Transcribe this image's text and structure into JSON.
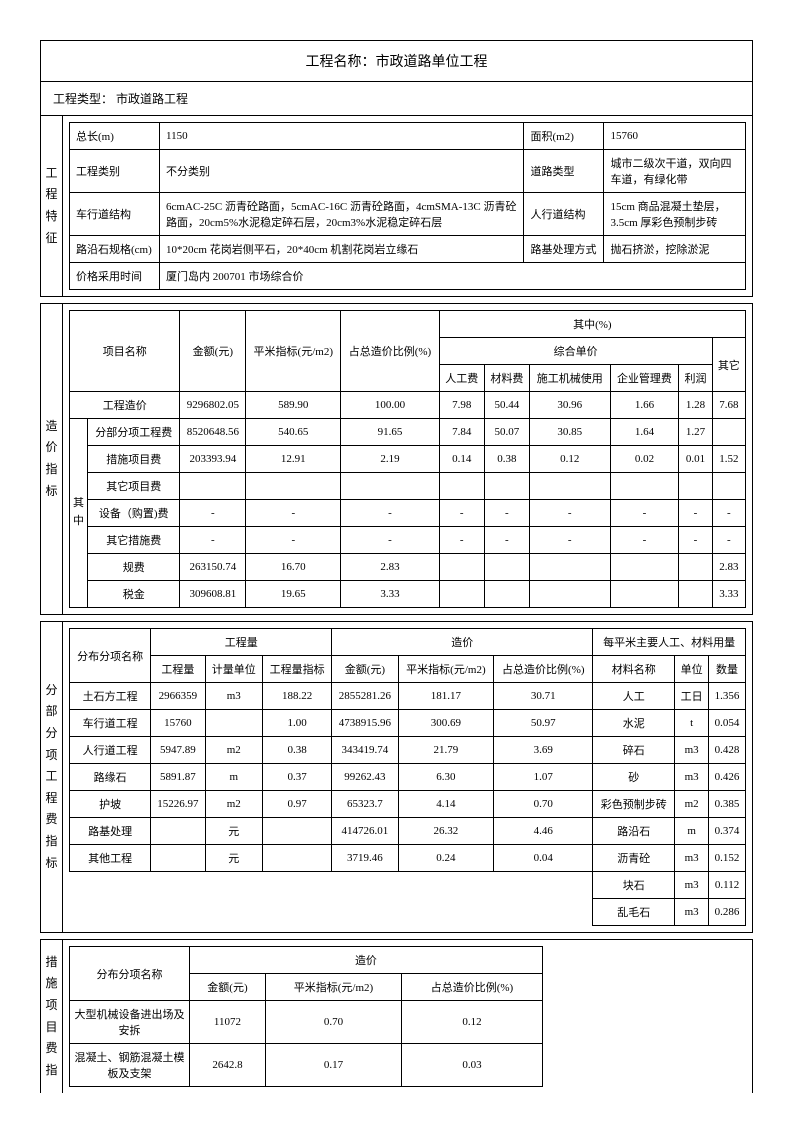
{
  "title": "工程名称：市政道路单位工程",
  "project_type_label": "工程类型： 市政道路工程",
  "section1": {
    "label": "工程特征",
    "rows": [
      [
        "总长(m)",
        "1150",
        "面积(m2)",
        "15760"
      ],
      [
        "工程类别",
        "不分类别",
        "道路类型",
        "城市二级次干道，双向四车道，有绿化带"
      ],
      [
        "车行道结构",
        "6cmAC-25C 沥青砼路面，5cmAC-16C 沥青砼路面，4cmSMA-13C 沥青砼路面，20cm5%水泥稳定碎石层，20cm3%水泥稳定碎石层",
        "人行道结构",
        "15cm 商品混凝土垫层，3.5cm 厚彩色预制步砖"
      ],
      [
        "路沿石规格(cm)",
        "10*20cm 花岗岩侧平石，20*40cm 机割花岗岩立缘石",
        "路基处理方式",
        "抛石挤淤，挖除淤泥"
      ],
      [
        "价格采用时间",
        "厦门岛内 200701 市场综合价",
        "",
        ""
      ]
    ]
  },
  "section2": {
    "label": "造价指标",
    "inner_label": "其中",
    "headers": {
      "c1": "项目名称",
      "c2": "金额(元)",
      "c3": "平米指标(元/m2)",
      "c4": "占总造价比例(%)",
      "group": "其中(%)",
      "sub": "综合单价",
      "s1": "人工费",
      "s2": "材料费",
      "s3": "施工机械使用",
      "s4": "企业管理费",
      "s5": "利润",
      "s6": "其它"
    },
    "rows": [
      [
        "工程造价",
        "9296802.05",
        "589.90",
        "100.00",
        "7.98",
        "50.44",
        "30.96",
        "1.66",
        "1.28",
        "7.68"
      ],
      [
        "分部分项工程费",
        "8520648.56",
        "540.65",
        "91.65",
        "7.84",
        "50.07",
        "30.85",
        "1.64",
        "1.27",
        ""
      ],
      [
        "措施项目费",
        "203393.94",
        "12.91",
        "2.19",
        "0.14",
        "0.38",
        "0.12",
        "0.02",
        "0.01",
        "1.52"
      ],
      [
        "其它项目费",
        "",
        "",
        "",
        "",
        "",
        "",
        "",
        "",
        ""
      ],
      [
        "设备（购置)费",
        "-",
        "-",
        "-",
        "-",
        "-",
        "-",
        "-",
        "-",
        "-"
      ],
      [
        "其它措施费",
        "-",
        "-",
        "-",
        "-",
        "-",
        "-",
        "-",
        "-",
        "-"
      ],
      [
        "规费",
        "263150.74",
        "16.70",
        "2.83",
        "",
        "",
        "",
        "",
        "",
        "2.83"
      ],
      [
        "税金",
        "309608.81",
        "19.65",
        "3.33",
        "",
        "",
        "",
        "",
        "",
        "3.33"
      ]
    ]
  },
  "section3": {
    "label": "分部分项工程费指标",
    "headers": {
      "c1": "分布分项名称",
      "g1": "工程量",
      "g2": "造价",
      "g3": "每平米主要人工、材料用量",
      "s1": "工程量",
      "s2": "计量单位",
      "s3": "工程量指标",
      "s4": "金额(元)",
      "s5": "平米指标(元/m2)",
      "s6": "占总造价比例(%)",
      "s7": "材料名称",
      "s8": "单位",
      "s9": "数量"
    },
    "rows": [
      [
        "土石方工程",
        "2966359",
        "m3",
        "188.22",
        "2855281.26",
        "181.17",
        "30.71",
        "人工",
        "工日",
        "1.356"
      ],
      [
        "车行道工程",
        "15760",
        "",
        "1.00",
        "4738915.96",
        "300.69",
        "50.97",
        "水泥",
        "t",
        "0.054"
      ],
      [
        "人行道工程",
        "5947.89",
        "m2",
        "0.38",
        "343419.74",
        "21.79",
        "3.69",
        "碎石",
        "m3",
        "0.428"
      ],
      [
        "路缘石",
        "5891.87",
        "m",
        "0.37",
        "99262.43",
        "6.30",
        "1.07",
        "砂",
        "m3",
        "0.426"
      ],
      [
        "护坡",
        "15226.97",
        "m2",
        "0.97",
        "65323.7",
        "4.14",
        "0.70",
        "彩色预制步砖",
        "m2",
        "0.385"
      ],
      [
        "路基处理",
        "",
        "元",
        "",
        "414726.01",
        "26.32",
        "4.46",
        "路沿石",
        "m",
        "0.374"
      ],
      [
        "其他工程",
        "",
        "元",
        "",
        "3719.46",
        "0.24",
        "0.04",
        "沥青砼",
        "m3",
        "0.152"
      ]
    ],
    "extra_rows": [
      [
        "块石",
        "m3",
        "0.112"
      ],
      [
        "乱毛石",
        "m3",
        "0.286"
      ]
    ]
  },
  "section4": {
    "label": "措施项目费指",
    "headers": {
      "c1": "分布分项名称",
      "g1": "造价",
      "s1": "金额(元)",
      "s2": "平米指标(元/m2)",
      "s3": "占总造价比例(%)"
    },
    "rows": [
      [
        "大型机械设备进出场及安拆",
        "11072",
        "0.70",
        "0.12"
      ],
      [
        "混凝土、钢筋混凝土模板及支架",
        "2642.8",
        "0.17",
        "0.03"
      ]
    ]
  }
}
